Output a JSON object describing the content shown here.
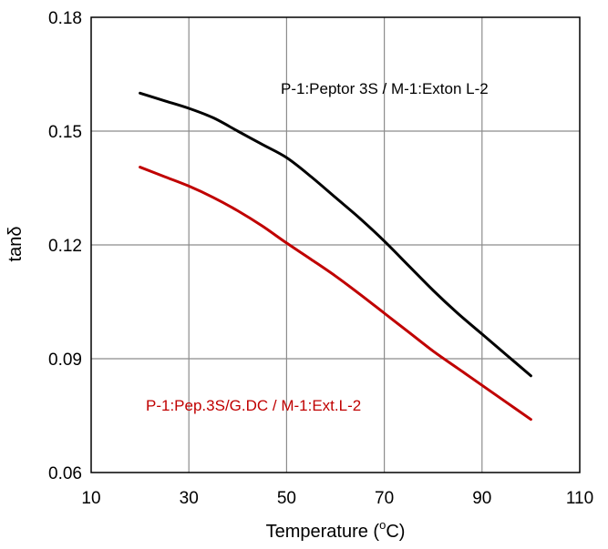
{
  "chart_data": {
    "type": "line",
    "title": "",
    "xlabel": "Temperature (",
    "xlabel_sup": "o",
    "xlabel_unit": "C)",
    "ylabel": "tanδ",
    "xlim": [
      10,
      110
    ],
    "ylim": [
      0.06,
      0.18
    ],
    "x_ticks": [
      10,
      30,
      50,
      70,
      90,
      110
    ],
    "x_tick_labels": [
      "10",
      "30",
      "50",
      "70",
      "90",
      "110"
    ],
    "y_ticks": [
      0.06,
      0.09,
      0.12,
      0.15,
      0.18
    ],
    "y_tick_labels": [
      "0.06",
      "0.09",
      "0.12",
      "0.15",
      "0.18"
    ],
    "grid": true,
    "series": [
      {
        "name": "P-1:Peptor 3S / M-1:Exton L-2",
        "color": "#000000",
        "x": [
          20,
          25,
          30,
          35,
          40,
          45,
          50,
          55,
          60,
          65,
          70,
          75,
          80,
          85,
          90,
          95,
          100
        ],
        "y": [
          0.16,
          0.158,
          0.156,
          0.1535,
          0.15,
          0.1465,
          0.143,
          0.138,
          0.1325,
          0.127,
          0.121,
          0.1145,
          0.108,
          0.102,
          0.0965,
          0.091,
          0.0855
        ]
      },
      {
        "name": "P-1:Pep.3S/G.DC / M-1:Ext.L-2",
        "color": "#c00000",
        "x": [
          20,
          25,
          30,
          35,
          40,
          45,
          50,
          55,
          60,
          65,
          70,
          75,
          80,
          85,
          90,
          95,
          100
        ],
        "y": [
          0.1405,
          0.138,
          0.1355,
          0.1325,
          0.129,
          0.125,
          0.1205,
          0.1162,
          0.1118,
          0.107,
          0.102,
          0.097,
          0.092,
          0.0875,
          0.083,
          0.0785,
          0.074
        ]
      }
    ]
  }
}
